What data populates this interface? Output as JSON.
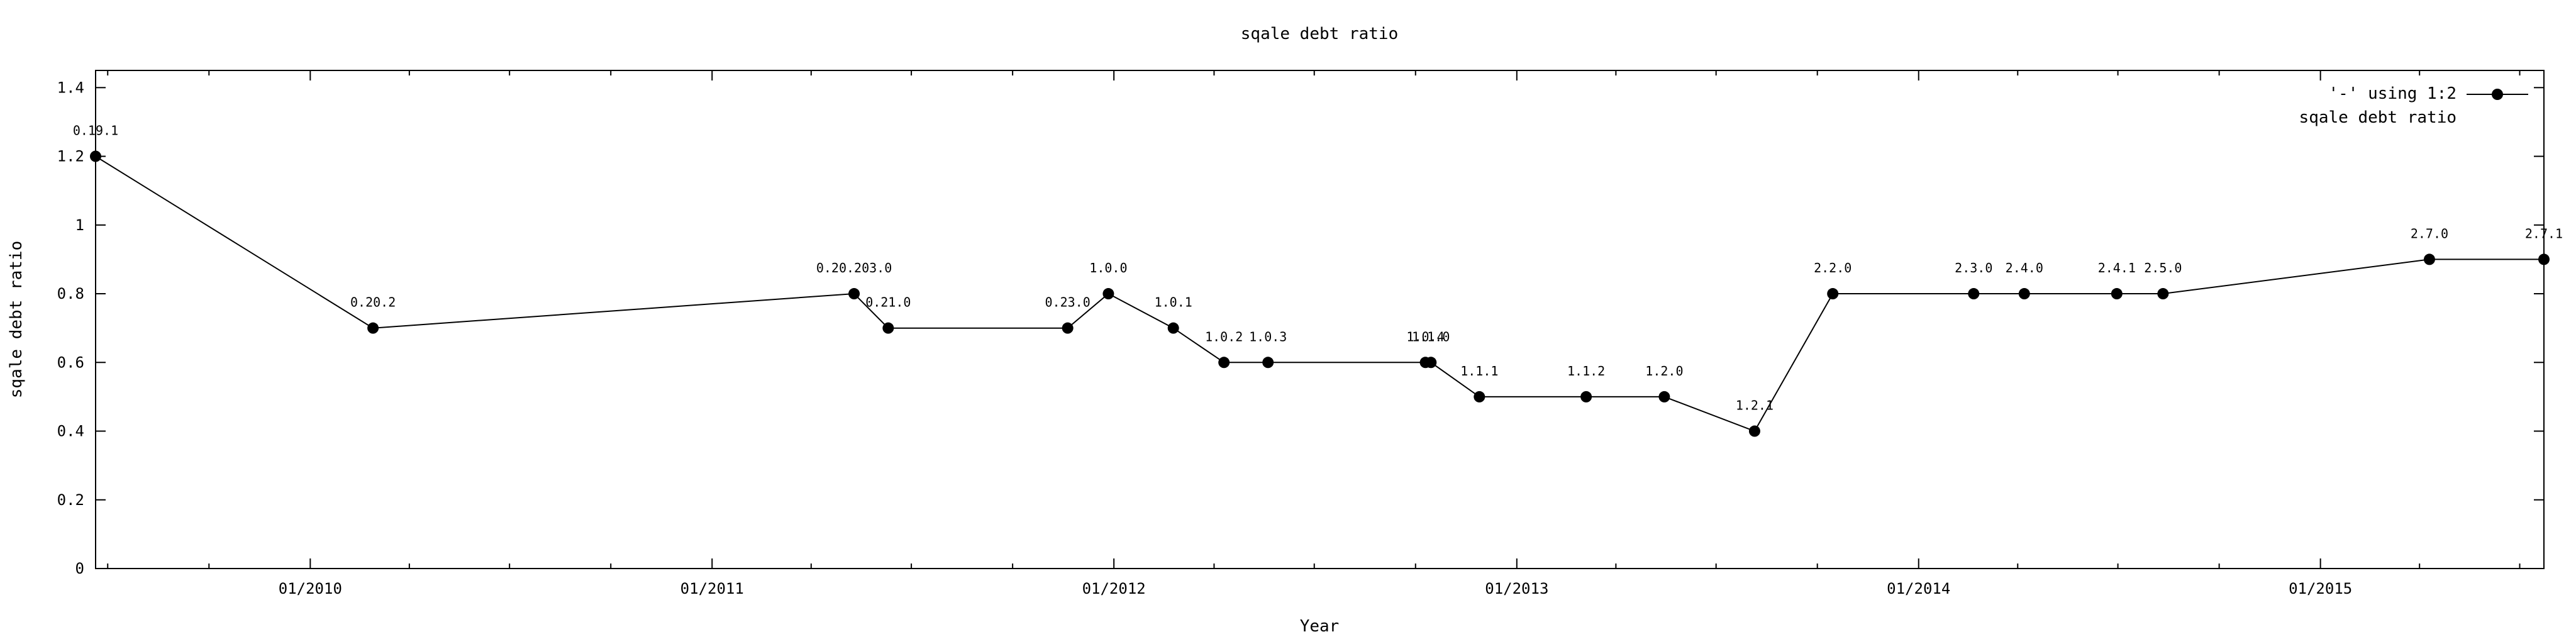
{
  "chart_data": {
    "type": "line",
    "title": "sqale debt ratio",
    "xlabel": "Year",
    "ylabel": "sqale debt ratio",
    "ylim": [
      0,
      1.45
    ],
    "yticks": [
      "0",
      "0.2",
      "0.4",
      "0.6",
      "0.8",
      "1",
      "1.2",
      "1.4"
    ],
    "yticks_values": [
      0,
      0.2,
      0.4,
      0.6,
      0.8,
      1,
      1.2,
      1.4
    ],
    "xlim": [
      "2009-06-20",
      "2015-07-23"
    ],
    "xticks": [
      "01/2010",
      "01/2011",
      "01/2012",
      "01/2013",
      "01/2014",
      "01/2015"
    ],
    "xticks_dates": [
      "2010-01-01",
      "2011-01-01",
      "2012-01-01",
      "2013-01-01",
      "2014-01-01",
      "2015-01-01"
    ],
    "legend": {
      "position": "top-right",
      "entries": [
        "'-' using 1:2",
        "sqale debt ratio"
      ]
    },
    "grid": false,
    "series": [
      {
        "name": "sqale debt ratio",
        "points": [
          {
            "x": "2009-06-20",
            "y": 1.2,
            "label": "0.19.1"
          },
          {
            "x": "2010-02-27",
            "y": 0.7,
            "label": "0.20.2"
          },
          {
            "x": "2011-05-10",
            "y": 0.8,
            "label": "0.20.203.0"
          },
          {
            "x": "2011-06-10",
            "y": 0.7,
            "label": "0.21.0"
          },
          {
            "x": "2011-11-20",
            "y": 0.7,
            "label": "0.23.0"
          },
          {
            "x": "2011-12-27",
            "y": 0.8,
            "label": "1.0.0"
          },
          {
            "x": "2012-02-24",
            "y": 0.7,
            "label": "1.0.1"
          },
          {
            "x": "2012-04-10",
            "y": 0.6,
            "label": "1.0.2"
          },
          {
            "x": "2012-05-20",
            "y": 0.6,
            "label": "1.0.3"
          },
          {
            "x": "2012-10-10",
            "y": 0.6,
            "label": "1.0.4"
          },
          {
            "x": "2012-10-15",
            "y": 0.6,
            "label": "1.1.0"
          },
          {
            "x": "2012-11-28",
            "y": 0.5,
            "label": "1.1.1"
          },
          {
            "x": "2013-03-05",
            "y": 0.5,
            "label": "1.1.2"
          },
          {
            "x": "2013-05-15",
            "y": 0.5,
            "label": "1.2.0"
          },
          {
            "x": "2013-08-05",
            "y": 0.4,
            "label": "1.2.1"
          },
          {
            "x": "2013-10-15",
            "y": 0.8,
            "label": "2.2.0"
          },
          {
            "x": "2014-02-20",
            "y": 0.8,
            "label": "2.3.0"
          },
          {
            "x": "2014-04-07",
            "y": 0.8,
            "label": "2.4.0"
          },
          {
            "x": "2014-06-30",
            "y": 0.8,
            "label": "2.4.1"
          },
          {
            "x": "2014-08-11",
            "y": 0.8,
            "label": "2.5.0"
          },
          {
            "x": "2015-04-10",
            "y": 0.9,
            "label": "2.7.0"
          },
          {
            "x": "2015-07-23",
            "y": 0.9,
            "label": "2.7.1"
          }
        ]
      }
    ]
  }
}
